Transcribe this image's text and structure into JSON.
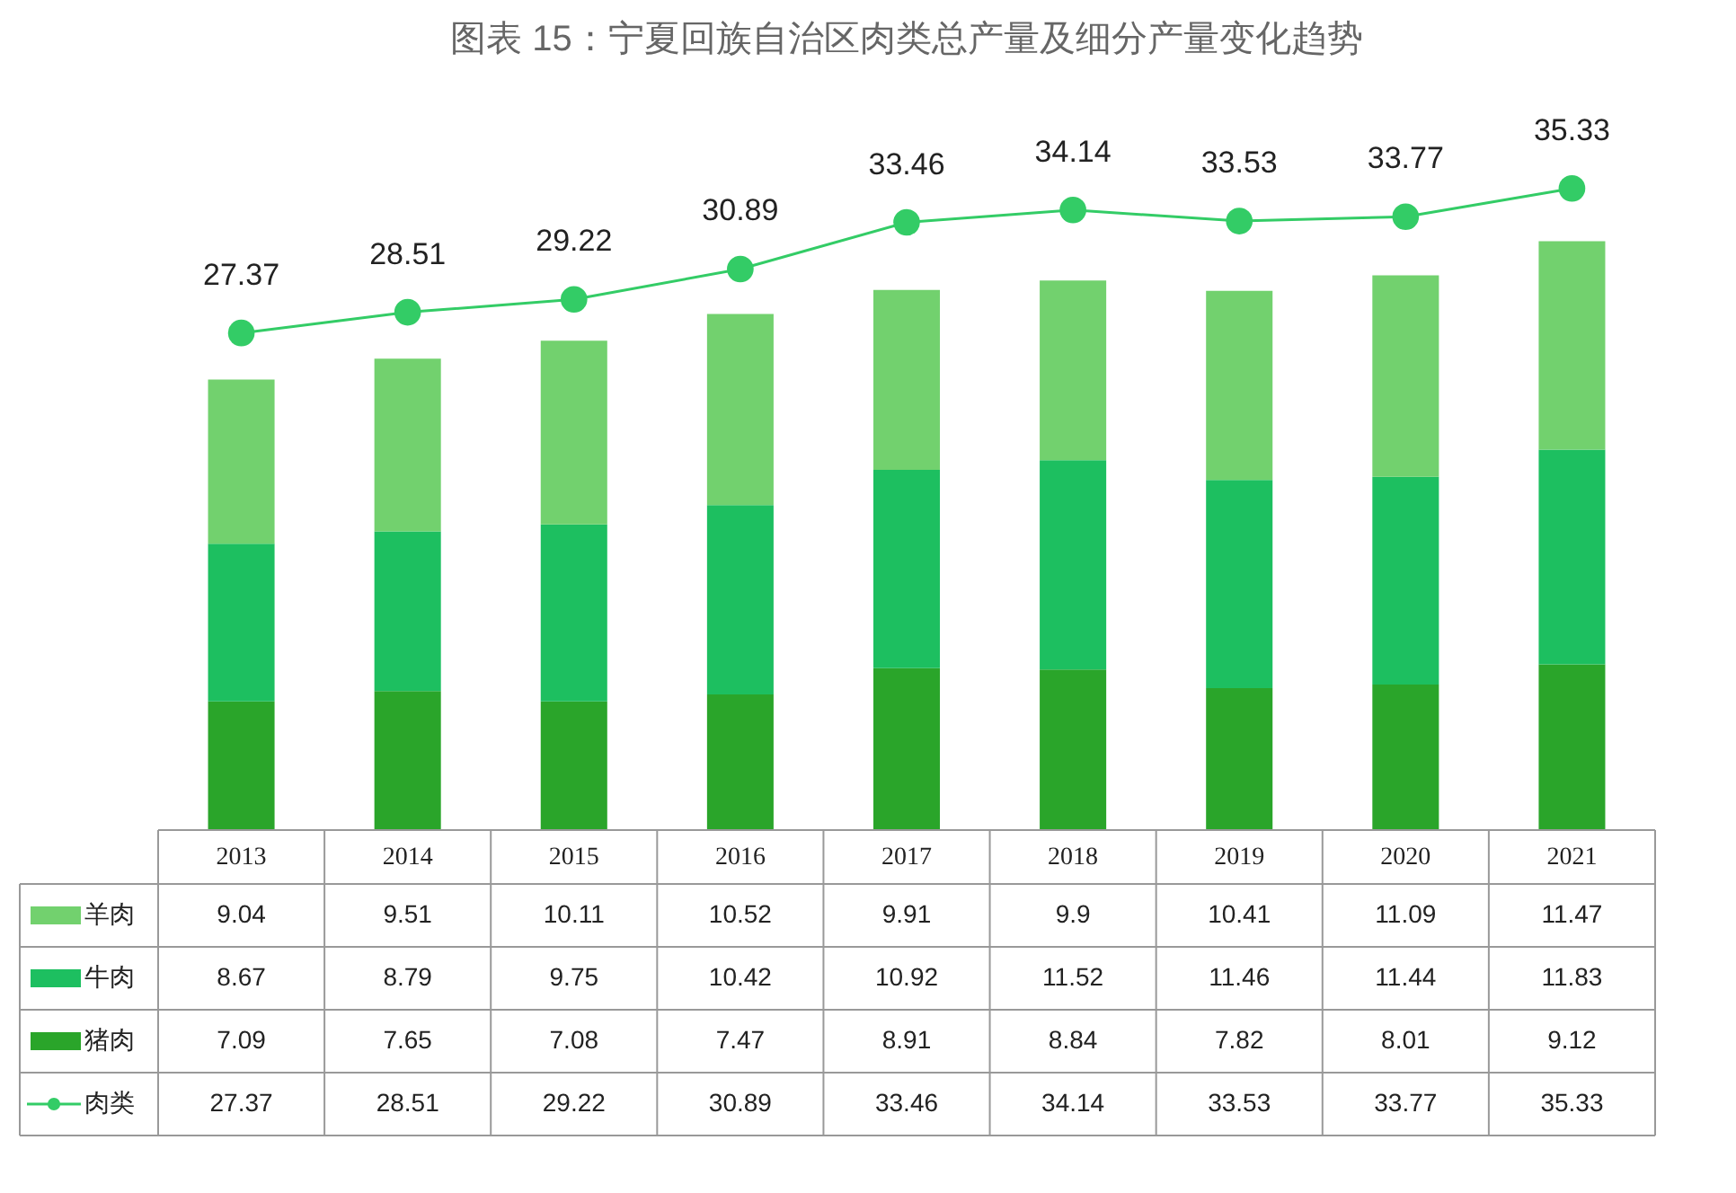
{
  "chart_data": {
    "type": "bar",
    "stacked": true,
    "title": "图表 15：宁夏回族自治区肉类总产量及细分产量变化趋势",
    "categories": [
      "2013",
      "2014",
      "2015",
      "2016",
      "2017",
      "2018",
      "2019",
      "2020",
      "2021"
    ],
    "series": [
      {
        "name": "猪肉",
        "color": "#2aa52a",
        "values": [
          7.09,
          7.65,
          7.08,
          7.47,
          8.91,
          8.84,
          7.82,
          8.01,
          9.12
        ]
      },
      {
        "name": "牛肉",
        "color": "#1dbf60",
        "values": [
          8.67,
          8.79,
          9.75,
          10.42,
          10.92,
          11.52,
          11.46,
          11.44,
          11.83
        ]
      },
      {
        "name": "羊肉",
        "color": "#72d16e",
        "values": [
          9.04,
          9.51,
          10.11,
          10.52,
          9.91,
          9.9,
          10.41,
          11.09,
          11.47
        ]
      },
      {
        "name": "肉类",
        "type": "line",
        "color": "#33cc66",
        "marker": "circle",
        "values": [
          27.37,
          28.51,
          29.22,
          30.89,
          33.46,
          34.14,
          33.53,
          33.77,
          35.33
        ]
      }
    ],
    "annotations": [
      {
        "text": "27.37",
        "x": "2013",
        "y": 27.37
      },
      {
        "text": "28.51",
        "x": "2014",
        "y": 28.51
      },
      {
        "text": "29.22",
        "x": "2015",
        "y": 29.22
      },
      {
        "text": "30.89",
        "x": "2016",
        "y": 30.89
      },
      {
        "text": "33.46",
        "x": "2017",
        "y": 33.46
      },
      {
        "text": "34.14",
        "x": "2018",
        "y": 34.14
      },
      {
        "text": "33.53",
        "x": "2019",
        "y": 33.53
      },
      {
        "text": "33.77",
        "x": "2020",
        "y": 33.77
      },
      {
        "text": "35.33",
        "x": "2021",
        "y": 35.33
      }
    ],
    "data_labels": true,
    "legend": "bottom left"
  }
}
